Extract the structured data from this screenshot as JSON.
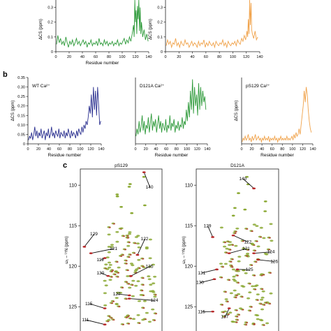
{
  "panel_b_label": "b",
  "panel_c_label": "c",
  "chart_data": [
    {
      "id": "a1",
      "type": "line",
      "color": "#2e9a3a",
      "title": "",
      "xlabel": "Residue number",
      "ylabel": "ΔCS (ppm)",
      "xlim": [
        0,
        140
      ],
      "ylim": [
        0,
        0.35
      ],
      "xticks": [
        0,
        20,
        40,
        60,
        80,
        100,
        120,
        140
      ],
      "yticks": [
        0,
        0.1,
        0.2,
        0.3
      ],
      "x": [
        1,
        3,
        5,
        7,
        9,
        11,
        13,
        15,
        17,
        19,
        21,
        23,
        25,
        27,
        29,
        31,
        33,
        35,
        37,
        39,
        41,
        43,
        45,
        47,
        49,
        51,
        53,
        55,
        57,
        59,
        61,
        63,
        65,
        67,
        69,
        71,
        73,
        75,
        77,
        79,
        81,
        83,
        85,
        87,
        89,
        91,
        93,
        95,
        97,
        99,
        101,
        103,
        105,
        107,
        109,
        111,
        113,
        115,
        117,
        118,
        119,
        120,
        121,
        122,
        123,
        124,
        125,
        126,
        127,
        128,
        129,
        131,
        133,
        135,
        137,
        139
      ],
      "values": [
        0.05,
        0.11,
        0.06,
        0.09,
        0.05,
        0.07,
        0.04,
        0.1,
        0.06,
        0.03,
        0.07,
        0.05,
        0.08,
        0.04,
        0.06,
        0.09,
        0.05,
        0.07,
        0.04,
        0.06,
        0.08,
        0.05,
        0.07,
        0.03,
        0.06,
        0.05,
        0.08,
        0.04,
        0.06,
        0.05,
        0.07,
        0.04,
        0.09,
        0.05,
        0.06,
        0.04,
        0.08,
        0.05,
        0.07,
        0.04,
        0.06,
        0.05,
        0.07,
        0.04,
        0.06,
        0.05,
        0.08,
        0.04,
        0.06,
        0.05,
        0.07,
        0.09,
        0.05,
        0.08,
        0.06,
        0.1,
        0.07,
        0.12,
        0.18,
        0.1,
        0.35,
        0.2,
        0.28,
        0.12,
        0.31,
        0.22,
        0.35,
        0.14,
        0.3,
        0.12,
        0.2,
        0.1,
        0.15,
        0.08,
        0.12,
        0.07
      ]
    },
    {
      "id": "a2",
      "type": "line",
      "color": "#f0a24a",
      "title": "",
      "xlabel": "",
      "ylabel": "ΔCS (ppm)",
      "xlim": [
        0,
        140
      ],
      "ylim": [
        0,
        0.35
      ],
      "xticks": [
        0,
        20,
        40,
        60,
        80,
        100,
        120,
        140
      ],
      "yticks": [
        0,
        0.1,
        0.2,
        0.3
      ],
      "x": [
        1,
        3,
        5,
        7,
        9,
        11,
        13,
        15,
        17,
        19,
        21,
        23,
        25,
        27,
        29,
        31,
        33,
        35,
        37,
        39,
        41,
        43,
        45,
        47,
        49,
        51,
        53,
        55,
        57,
        59,
        61,
        63,
        65,
        67,
        69,
        71,
        73,
        75,
        77,
        79,
        81,
        83,
        85,
        87,
        89,
        91,
        93,
        95,
        97,
        99,
        101,
        103,
        105,
        107,
        109,
        111,
        113,
        115,
        117,
        119,
        121,
        122,
        123,
        124,
        125,
        126,
        127,
        128,
        129,
        131,
        133,
        135,
        137
      ],
      "values": [
        0.04,
        0.08,
        0.05,
        0.07,
        0.03,
        0.06,
        0.05,
        0.09,
        0.04,
        0.06,
        0.03,
        0.07,
        0.05,
        0.04,
        0.08,
        0.05,
        0.06,
        0.03,
        0.05,
        0.07,
        0.04,
        0.06,
        0.05,
        0.03,
        0.07,
        0.04,
        0.06,
        0.05,
        0.08,
        0.03,
        0.06,
        0.04,
        0.07,
        0.05,
        0.04,
        0.06,
        0.03,
        0.07,
        0.05,
        0.04,
        0.06,
        0.05,
        0.08,
        0.04,
        0.06,
        0.03,
        0.07,
        0.05,
        0.04,
        0.06,
        0.05,
        0.07,
        0.04,
        0.08,
        0.06,
        0.05,
        0.09,
        0.07,
        0.11,
        0.08,
        0.14,
        0.1,
        0.22,
        0.12,
        0.35,
        0.18,
        0.33,
        0.15,
        0.12,
        0.09,
        0.14,
        0.08,
        0.1
      ]
    },
    {
      "id": "b1",
      "type": "line",
      "color": "#2a2f8f",
      "title": "WT Ca²⁺",
      "xlabel": "Residue number",
      "ylabel": "ΔCS (ppm)",
      "xlim": [
        0,
        140
      ],
      "ylim": [
        0,
        0.35
      ],
      "xticks": [
        0,
        20,
        40,
        60,
        80,
        100,
        120,
        140
      ],
      "yticks": [
        0,
        0.05,
        0.1,
        0.15,
        0.2,
        0.25,
        0.3,
        0.35
      ],
      "ytick_labels": [
        "0",
        "0.05",
        "0.10",
        "0.15",
        "0.20",
        "0.25",
        "0.30",
        "0.35"
      ],
      "x": [
        1,
        3,
        5,
        7,
        9,
        11,
        13,
        15,
        17,
        19,
        21,
        23,
        25,
        27,
        29,
        31,
        33,
        35,
        37,
        39,
        41,
        43,
        45,
        47,
        49,
        51,
        53,
        55,
        57,
        59,
        61,
        63,
        65,
        67,
        69,
        71,
        73,
        75,
        77,
        79,
        81,
        83,
        85,
        87,
        89,
        91,
        93,
        95,
        97,
        99,
        101,
        103,
        105,
        107,
        109,
        111,
        113,
        115,
        117,
        119,
        121,
        123,
        125,
        127,
        129,
        131,
        133,
        135,
        137,
        139
      ],
      "values": [
        0.02,
        0.04,
        0.03,
        0.06,
        0.02,
        0.05,
        0.09,
        0.04,
        0.07,
        0.03,
        0.06,
        0.04,
        0.08,
        0.03,
        0.05,
        0.07,
        0.02,
        0.06,
        0.04,
        0.08,
        0.03,
        0.05,
        0.09,
        0.04,
        0.06,
        0.03,
        0.07,
        0.05,
        0.04,
        0.08,
        0.03,
        0.06,
        0.05,
        0.04,
        0.07,
        0.03,
        0.06,
        0.04,
        0.08,
        0.05,
        0.03,
        0.07,
        0.04,
        0.06,
        0.05,
        0.03,
        0.07,
        0.04,
        0.08,
        0.06,
        0.05,
        0.09,
        0.06,
        0.1,
        0.08,
        0.12,
        0.1,
        0.14,
        0.2,
        0.16,
        0.26,
        0.14,
        0.3,
        0.18,
        0.28,
        0.15,
        0.3,
        0.2,
        0.1,
        0.12
      ]
    },
    {
      "id": "b2",
      "type": "line",
      "color": "#2e9a3a",
      "title": "D121A Ca²⁺",
      "xlabel": "Residue number",
      "ylabel": "",
      "xlim": [
        0,
        140
      ],
      "ylim": [
        0,
        0.35
      ],
      "xticks": [
        0,
        20,
        40,
        60,
        80,
        100,
        120,
        140
      ],
      "yticks": [],
      "x": [
        1,
        3,
        5,
        7,
        9,
        11,
        13,
        15,
        17,
        19,
        21,
        23,
        25,
        27,
        29,
        31,
        33,
        35,
        37,
        39,
        41,
        43,
        45,
        47,
        49,
        51,
        53,
        55,
        57,
        59,
        61,
        63,
        65,
        67,
        69,
        71,
        73,
        75,
        77,
        79,
        81,
        83,
        85,
        87,
        89,
        91,
        93,
        95,
        97,
        99,
        101,
        103,
        105,
        107,
        109,
        111,
        113,
        115,
        117,
        119,
        121,
        123,
        125,
        127,
        129,
        131,
        133,
        135,
        137
      ],
      "values": [
        0.04,
        0.08,
        0.05,
        0.12,
        0.06,
        0.09,
        0.15,
        0.07,
        0.12,
        0.05,
        0.1,
        0.08,
        0.14,
        0.06,
        0.11,
        0.16,
        0.07,
        0.12,
        0.09,
        0.13,
        0.06,
        0.1,
        0.15,
        0.08,
        0.12,
        0.06,
        0.11,
        0.09,
        0.07,
        0.13,
        0.06,
        0.1,
        0.08,
        0.15,
        0.07,
        0.11,
        0.09,
        0.13,
        0.06,
        0.1,
        0.08,
        0.12,
        0.07,
        0.1,
        0.09,
        0.14,
        0.08,
        0.12,
        0.1,
        0.18,
        0.12,
        0.22,
        0.14,
        0.28,
        0.18,
        0.34,
        0.16,
        0.3,
        0.2,
        0.26,
        0.15,
        0.32,
        0.18,
        0.3,
        0.2,
        0.28,
        0.22,
        0.25,
        0.18
      ]
    },
    {
      "id": "b3",
      "type": "line",
      "color": "#f0a24a",
      "title": "pS129 Ca²⁺",
      "xlabel": "Residue number",
      "ylabel": "ΔCS (ppm)",
      "xlim": [
        0,
        140
      ],
      "ylim": [
        0,
        0.35
      ],
      "xticks": [
        0,
        20,
        40,
        60,
        80,
        100,
        120,
        140
      ],
      "yticks": [],
      "x": [
        1,
        3,
        5,
        7,
        9,
        11,
        13,
        15,
        17,
        19,
        21,
        23,
        25,
        27,
        29,
        31,
        33,
        35,
        37,
        39,
        41,
        43,
        45,
        47,
        49,
        51,
        53,
        55,
        57,
        59,
        61,
        63,
        65,
        67,
        69,
        71,
        73,
        75,
        77,
        79,
        81,
        83,
        85,
        87,
        89,
        91,
        93,
        95,
        97,
        99,
        101,
        103,
        105,
        107,
        109,
        111,
        113,
        115,
        117,
        119,
        121,
        123,
        125,
        127,
        129,
        131,
        133,
        135,
        137
      ],
      "values": [
        0.01,
        0.03,
        0.02,
        0.04,
        0.02,
        0.03,
        0.05,
        0.02,
        0.03,
        0.01,
        0.04,
        0.02,
        0.03,
        0.05,
        0.02,
        0.03,
        0.04,
        0.02,
        0.03,
        0.01,
        0.03,
        0.02,
        0.04,
        0.02,
        0.03,
        0.02,
        0.04,
        0.01,
        0.03,
        0.02,
        0.03,
        0.02,
        0.04,
        0.02,
        0.03,
        0.01,
        0.03,
        0.02,
        0.04,
        0.02,
        0.03,
        0.02,
        0.03,
        0.02,
        0.04,
        0.02,
        0.03,
        0.02,
        0.03,
        0.04,
        0.02,
        0.05,
        0.03,
        0.06,
        0.04,
        0.05,
        0.08,
        0.05,
        0.1,
        0.15,
        0.2,
        0.28,
        0.22,
        0.3,
        0.26,
        0.18,
        0.12,
        0.08,
        0.06
      ]
    },
    {
      "id": "c1",
      "type": "scatter",
      "title": "pS129",
      "ylabel": "ω₁ – ¹⁵N (ppm)",
      "ylim": [
        108,
        128
      ],
      "yticks": [
        110,
        115,
        120,
        125
      ],
      "annotations": [
        "140",
        "129",
        "121",
        "122",
        "119",
        "130",
        "135",
        "127",
        "124",
        "115",
        "111"
      ]
    },
    {
      "id": "c2",
      "type": "scatter",
      "title": "D121A",
      "ylabel": "ω₁ – ¹⁵N (ppm)",
      "ylim": [
        108,
        128
      ],
      "yticks": [
        110,
        115,
        120,
        125
      ],
      "annotations": [
        "140",
        "129",
        "122",
        "121",
        "126",
        "124",
        "125",
        "131",
        "130",
        "115",
        "137"
      ]
    }
  ]
}
